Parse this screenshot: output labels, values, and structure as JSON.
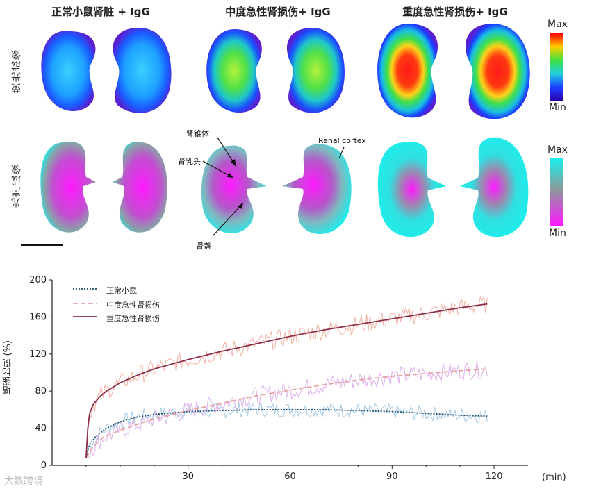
{
  "figure": {
    "col_titles": [
      "正常小鼠肾脏 + IgG",
      "中度急性肾损伤+ IgG",
      "重度急性肾损伤+ IgG"
    ],
    "row_labels": [
      "荧光成像",
      "光声成像"
    ],
    "fluor_colorbar": {
      "max": "Max",
      "min": "Min"
    },
    "pa_colorbar": {
      "max": "Max",
      "min": "Min"
    },
    "annotations": {
      "pyramid": "肾锥体",
      "papilla": "肾乳头",
      "pelvis": "肾盏",
      "cortex": "Renal cortex"
    },
    "fluor_level": {
      "normal": 0.15,
      "moderate": 0.55,
      "severe": 0.95
    },
    "colors": {
      "magenta": "#ff19ff",
      "cyan": "#19f0ee",
      "gray": "#9a9a9a",
      "normal_line": "#1b4f72",
      "moderate_line": "#e8a0a0",
      "severe_line": "#8b2f4a"
    }
  },
  "chart_data": {
    "type": "line",
    "xlabel": "(min)",
    "ylabel": "增强比例 (%)",
    "xlim": [
      -10,
      130
    ],
    "ylim": [
      0,
      200
    ],
    "xticks": [
      30,
      60,
      90,
      120
    ],
    "yticks": [
      0,
      40,
      80,
      120,
      160,
      200
    ],
    "legend_position": "top-left",
    "series": [
      {
        "name": "正常小鼠",
        "style": "dotted",
        "color": "#1b4f72",
        "x": [
          0,
          1,
          3,
          6,
          10,
          15,
          20,
          30,
          40,
          50,
          60,
          70,
          80,
          90,
          100,
          110,
          118
        ],
        "y": [
          8,
          22,
          32,
          40,
          47,
          52,
          55,
          58,
          59,
          60,
          60,
          60,
          59,
          58,
          56,
          54,
          53
        ]
      },
      {
        "name": "中度急性肾损伤",
        "style": "dashed",
        "color": "#e8a0a0",
        "x": [
          0,
          2,
          5,
          10,
          15,
          20,
          30,
          40,
          50,
          60,
          70,
          80,
          90,
          100,
          110,
          118
        ],
        "y": [
          8,
          20,
          30,
          38,
          44,
          50,
          59,
          67,
          75,
          81,
          87,
          92,
          96,
          99,
          102,
          104
        ]
      },
      {
        "name": "重度急性肾损伤",
        "style": "solid",
        "color": "#8b2f4a",
        "x": [
          0,
          0.5,
          1,
          2,
          4,
          6,
          10,
          15,
          20,
          30,
          40,
          50,
          60,
          70,
          80,
          90,
          100,
          110,
          118
        ],
        "y": [
          8,
          40,
          55,
          65,
          74,
          80,
          89,
          97,
          104,
          114,
          123,
          131,
          139,
          146,
          152,
          158,
          164,
          170,
          174
        ]
      }
    ]
  },
  "watermark": "大数跨境"
}
